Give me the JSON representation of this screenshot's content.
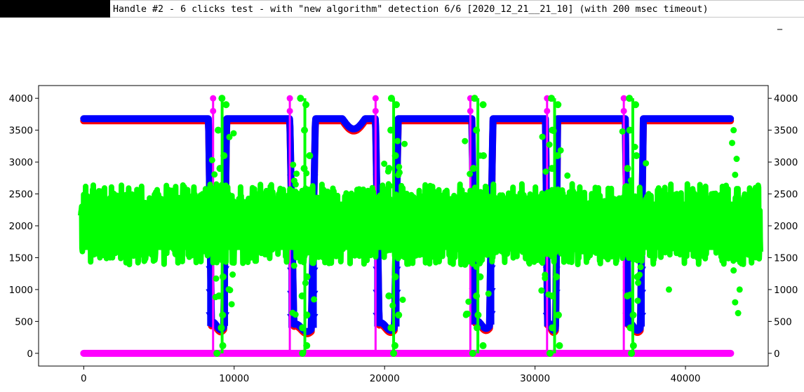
{
  "window": {
    "title": "Handle #2 - 6 clicks test - with \"new algorithm\" detection 6/6  [2020_12_21__21_10] (with 200 msec timeout)",
    "minimize_glyph": "_"
  },
  "colors": {
    "background": "#ffffff",
    "series_red": "#ff0000",
    "series_blue": "#0000ff",
    "series_magenta": "#ff00ff",
    "series_green": "#00ff00"
  },
  "chart_data": {
    "type": "line",
    "title": "",
    "xlabel": "",
    "ylabel": "",
    "xlim": [
      -3000,
      45500
    ],
    "ylim": [
      -200,
      4200
    ],
    "xticks": [
      0,
      10000,
      20000,
      30000,
      40000
    ],
    "xtick_labels": [
      "0",
      "10000",
      "20000",
      "30000",
      "40000"
    ],
    "yticks": [
      0,
      500,
      1000,
      1500,
      2000,
      2500,
      3000,
      3500,
      4000
    ],
    "ytick_labels": [
      "0",
      "500",
      "1000",
      "1500",
      "2000",
      "2500",
      "3000",
      "3500",
      "4000"
    ],
    "right_axis_ticks": true,
    "grid": false,
    "legend": "none",
    "series": [
      {
        "color": "#0000ff",
        "marker": "circle",
        "x_range": [
          0,
          43000
        ],
        "baseline": 3680,
        "dips": [
          {
            "start": 8300,
            "end": 9500,
            "min": 430
          },
          {
            "start": 13700,
            "end": 15400,
            "min": 400
          },
          {
            "start": 19400,
            "end": 20900,
            "min": 420
          },
          {
            "start": 25800,
            "end": 27200,
            "min": 450
          },
          {
            "start": 30700,
            "end": 31500,
            "min": 420
          },
          {
            "start": 36000,
            "end": 37200,
            "min": 420
          }
        ],
        "bump": {
          "start": 17200,
          "end": 18700,
          "value": 3520
        }
      },
      {
        "color": "#ff00ff",
        "marker": "circle",
        "x_range": [
          0,
          43000
        ],
        "baseline": 0,
        "spike_value": 4000,
        "spikes_x": [
          8600,
          13700,
          19400,
          25700,
          30800,
          35900
        ]
      },
      {
        "color": "#00ff00",
        "marker": "circle",
        "x_range": [
          -200,
          45000
        ],
        "center": 2000,
        "band": [
          1450,
          2600
        ],
        "spikes_x": [
          9200,
          14700,
          20600,
          26200,
          31300,
          36500
        ],
        "spike_range": [
          0,
          4000
        ]
      }
    ]
  }
}
